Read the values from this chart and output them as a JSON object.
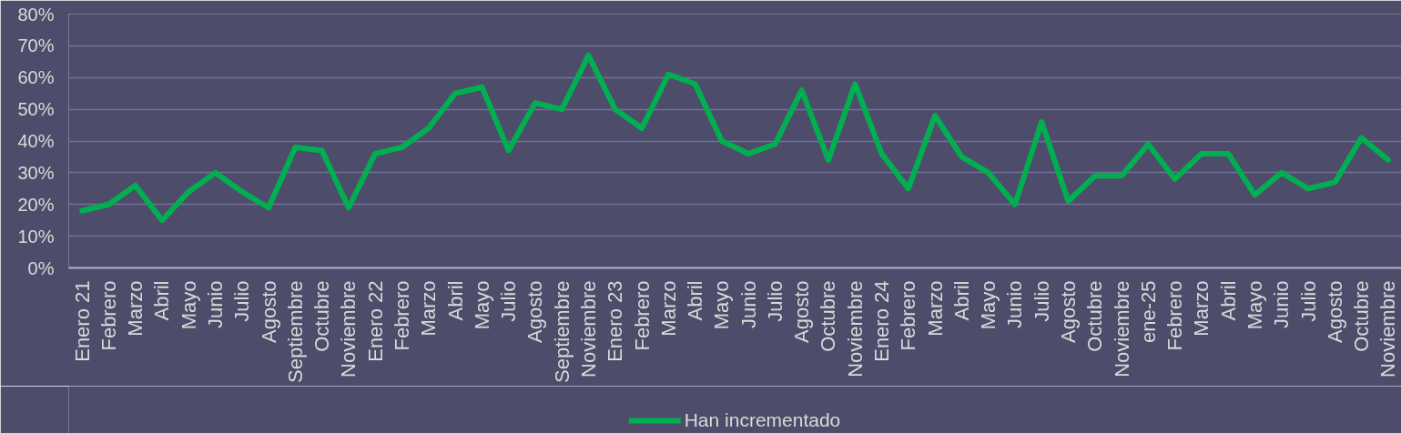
{
  "chart_data": {
    "type": "line",
    "categories": [
      "Enero 21",
      "Febrero",
      "Marzo",
      "Abril",
      "Mayo",
      "Junio",
      "Julio",
      "Agosto",
      "Septiembre",
      "Octubre",
      "Noviembre",
      "Enero 22",
      "Febrero",
      "Marzo",
      "Abril",
      "Mayo",
      "Julio",
      "Agosto",
      "Septiembre",
      "Noviembre",
      "Enero 23",
      "Febrero",
      "Marzo",
      "Abril",
      "Mayo",
      "Junio",
      "Julio",
      "Agosto",
      "Octubre",
      "Noviembre",
      "Enero 24",
      "Febrero",
      "Marzo",
      "Abril",
      "Mayo",
      "Junio",
      "Julio",
      "Agosto",
      "Octubre",
      "Noviembre",
      "ene-25",
      "Febrero",
      "Marzo",
      "Abril",
      "Mayo",
      "Junio",
      "Julio",
      "Agosto",
      "Octubre",
      "Noviembre"
    ],
    "series": [
      {
        "name": "Han incrementado",
        "color": "#00b050",
        "values": [
          18,
          20,
          26,
          15,
          24,
          30,
          24,
          19,
          38,
          37,
          19,
          36,
          38,
          44,
          55,
          57,
          37,
          52,
          50,
          67,
          50,
          44,
          61,
          58,
          40,
          36,
          39,
          56,
          34,
          58,
          36,
          25,
          48,
          35,
          30,
          20,
          46,
          21,
          29,
          29,
          39,
          28,
          36,
          36,
          23,
          30,
          25,
          27,
          41,
          34
        ]
      }
    ],
    "ylim": [
      0,
      80
    ],
    "yticks": [
      {
        "value": 0,
        "label": "0%"
      },
      {
        "value": 10,
        "label": "10%"
      },
      {
        "value": 20,
        "label": "20%"
      },
      {
        "value": 30,
        "label": "30%"
      },
      {
        "value": 40,
        "label": "40%"
      },
      {
        "value": 50,
        "label": "50%"
      },
      {
        "value": 60,
        "label": "60%"
      },
      {
        "value": 70,
        "label": "70%"
      },
      {
        "value": 80,
        "label": "80%"
      }
    ],
    "grid": "y",
    "legend": "bottom",
    "line_style": "solid"
  }
}
